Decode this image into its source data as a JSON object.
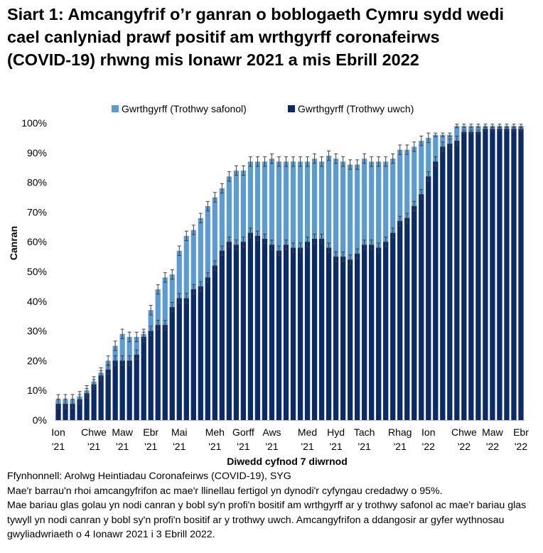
{
  "title": "Siart 1: Amcangyfrif o’r ganran o boblogaeth Cymru sydd wedi cael canlyniad prawf positif am wrthgyrff coronafeirws (COVID-19) rhwng mis Ionawr 2021 a mis Ebrill 2022",
  "colors": {
    "standard": "#5b9bd5",
    "higher": "#0a2a6a",
    "error": "#404040",
    "axis": "#bfbfbf"
  },
  "chart_data": {
    "type": "bar",
    "stacked": "overlay",
    "xlabel": "Diwedd cyfnod 7 diwrnod",
    "ylabel": "Canran",
    "ylim": [
      0,
      100
    ],
    "yticks": [
      0,
      10,
      20,
      30,
      40,
      50,
      60,
      70,
      80,
      90,
      100
    ],
    "yticklabels": [
      "0%",
      "10%",
      "20%",
      "30%",
      "40%",
      "50%",
      "60%",
      "70%",
      "80%",
      "90%",
      "100%"
    ],
    "xticklabels": [
      {
        "index": 0,
        "month": "Ion",
        "year": "'21"
      },
      {
        "index": 5,
        "month": "Chwe",
        "year": "'21"
      },
      {
        "index": 9,
        "month": "Maw",
        "year": "'21"
      },
      {
        "index": 13,
        "month": "Ebr",
        "year": "'21"
      },
      {
        "index": 17,
        "month": "Mai",
        "year": "'21"
      },
      {
        "index": 22,
        "month": "Meh",
        "year": "'21"
      },
      {
        "index": 26,
        "month": "Gorff",
        "year": "'21"
      },
      {
        "index": 30,
        "month": "Aws",
        "year": "'21"
      },
      {
        "index": 35,
        "month": "Med",
        "year": "'21"
      },
      {
        "index": 39,
        "month": "Hyd",
        "year": "'21"
      },
      {
        "index": 43,
        "month": "Tach",
        "year": "'21"
      },
      {
        "index": 48,
        "month": "Rhag",
        "year": "'21"
      },
      {
        "index": 52,
        "month": "Ion",
        "year": "'22"
      },
      {
        "index": 57,
        "month": "Chwe",
        "year": "'22"
      },
      {
        "index": 61,
        "month": "Maw",
        "year": "'22"
      },
      {
        "index": 65,
        "month": "Ebr",
        "year": "'22"
      }
    ],
    "legend": [
      "Gwrthgyrff (Trothwy safonol)",
      "Gwrthgyrff (Trothwy uwch)"
    ],
    "series": [
      {
        "name": "Gwrthgyrff (Trothwy safonol)",
        "values": [
          7,
          7,
          7,
          8,
          10,
          13,
          16,
          20,
          25,
          29,
          28,
          28,
          29,
          37,
          44,
          48,
          49,
          57,
          62,
          64,
          68,
          72,
          75,
          78,
          82,
          84,
          84,
          87,
          87,
          87,
          88,
          87,
          87,
          87,
          87,
          87,
          88,
          87,
          89,
          88,
          87,
          86,
          86,
          88,
          87,
          87,
          87,
          88,
          91,
          91,
          92,
          94,
          95,
          96,
          96,
          96,
          99,
          99,
          99,
          99,
          99,
          99,
          99,
          99,
          99,
          99
        ]
      },
      {
        "name": "Gwrthgyrff (Trothwy uwch)",
        "values": [
          5.5,
          5.5,
          5.5,
          7,
          9,
          12,
          15,
          17,
          20,
          20,
          20,
          22,
          28,
          30,
          32,
          32,
          38,
          41,
          41,
          44,
          45,
          48,
          52,
          57,
          60,
          59,
          60,
          63,
          62,
          61,
          59,
          57,
          59,
          58,
          58,
          60,
          61,
          61,
          58,
          55,
          55,
          54,
          56,
          59,
          59,
          58,
          60,
          63,
          67,
          68,
          72,
          76,
          82,
          87,
          92,
          93,
          94,
          97,
          97,
          97,
          98,
          98,
          98,
          98,
          98,
          98
        ]
      }
    ]
  },
  "notes": [
    "Ffynhonnell: Arolwg Heintiadau Coronafeirws (COVID-19), SYG",
    "Mae'r barrau'n rhoi amcangyfrifon ac mae'r llinellau fertigol yn dynodi'r cyfyngau credadwy o 95%.",
    "Mae bariau glas golau yn nodi canran y bobl sy'n profi'n bositif am wrthgyrff ar y trothwy safonol ac mae'r bariau glas tywyll yn nodi canran y bobl sy'n profi'n bositif ar y trothwy uwch. Amcangyfrifon a ddangosir ar gyfer wythnosau gwyliadwriaeth o 4 Ionawr 2021 i 3 Ebrill 2022."
  ]
}
